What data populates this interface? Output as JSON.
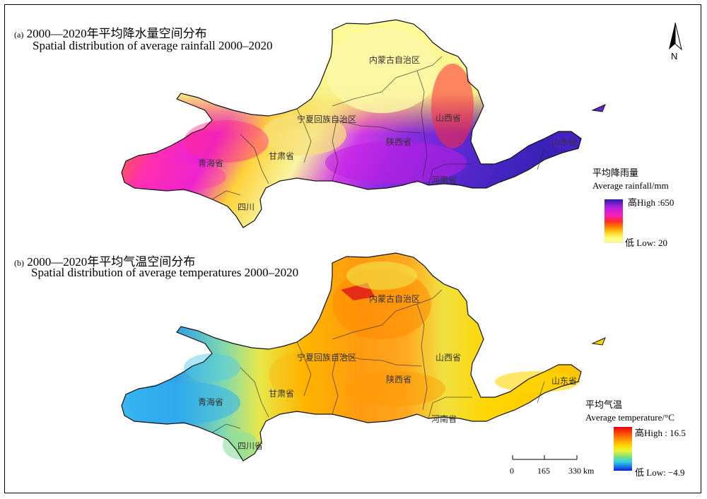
{
  "panel_a": {
    "label": "(a)",
    "title_cn": "2000—2020年平均降水量空间分布",
    "title_en": "Spatial distribution of average rainfall 2000–2020",
    "legend_title_cn": "平均降雨量",
    "legend_title_en": "Average rainfall/mm",
    "legend_high": "高High :650",
    "legend_low": "低 Low: 20",
    "high_value": 650,
    "low_value": 20,
    "ramp_colors": [
      "#2b1fa8",
      "#b31ee0",
      "#ff1fb4",
      "#ff2a2a",
      "#ff7a00",
      "#ffcf1a",
      "#ffff7a",
      "#f7f2a8"
    ],
    "regions": [
      "内蒙古自治区",
      "宁夏回族自治区",
      "山西省",
      "陕西省",
      "甘肃省",
      "青海省",
      "河南省",
      "山东省",
      "四川"
    ]
  },
  "panel_b": {
    "label": "(b)",
    "title_cn": "2000—2020年平均气温空间分布",
    "title_en": "Spatial distribution of average temperatures 2000–2020",
    "legend_title_cn": "平均气温",
    "legend_title_en": "Average temperature/°C",
    "legend_high": "高High : 16.5",
    "legend_low": "低 Low: −4.9",
    "high_value": 16.5,
    "low_value": -4.9,
    "ramp_colors": [
      "#e0001a",
      "#ff4d00",
      "#ff9a00",
      "#ffd600",
      "#e8f53a",
      "#7fe07a",
      "#2fd0e0",
      "#1a7cf0",
      "#1020c8"
    ],
    "regions": [
      "内蒙古自治区",
      "宁夏回族自治区",
      "山西省",
      "陕西省",
      "甘肃省",
      "青海省",
      "河南省",
      "山东省",
      "四川省"
    ]
  },
  "scale_bar": {
    "ticks": [
      "0",
      "165",
      "330 km"
    ]
  },
  "north_arrow": {
    "label": "N",
    "icon": "north-arrow-icon"
  }
}
